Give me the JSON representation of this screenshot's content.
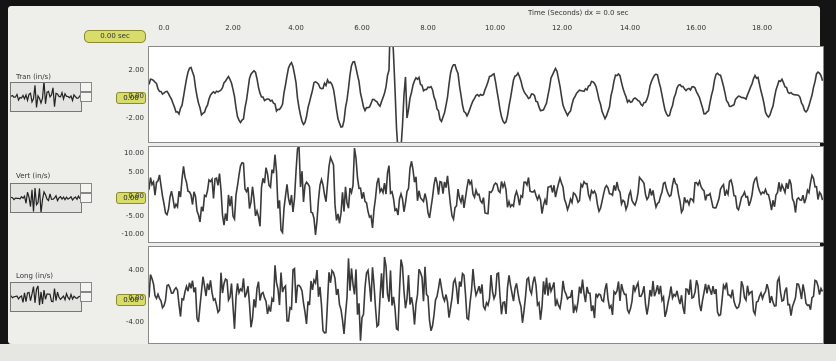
{
  "axis": {
    "title": "Time (Seconds) dx = 0.0 sec",
    "ticks": [
      "0.0",
      "2.00",
      "4.00",
      "6.00",
      "8.00",
      "10.00",
      "12.00",
      "14.00",
      "16.00",
      "18.00"
    ]
  },
  "time_badge": "0.00 sec",
  "channels": [
    {
      "key": "tran",
      "label": "Tran (in/s)",
      "value_badge": "0.00",
      "y_ticks": [
        "2.00",
        "0.00",
        "-2.00"
      ]
    },
    {
      "key": "vert",
      "label": "Vert (in/s)",
      "value_badge": "0.00",
      "y_ticks": [
        "10.00",
        "5.00",
        "0.00",
        "-5.00",
        "-10.00"
      ]
    },
    {
      "key": "long",
      "label": "Long (in/s)",
      "value_badge": "0.00",
      "y_ticks": [
        "4.00",
        "0.00",
        "-4.00"
      ]
    }
  ],
  "colors": {
    "trace": "#3a3a3a",
    "badge": "#d8dc6a",
    "background": "#141414",
    "panel": "#eeeeea"
  }
}
